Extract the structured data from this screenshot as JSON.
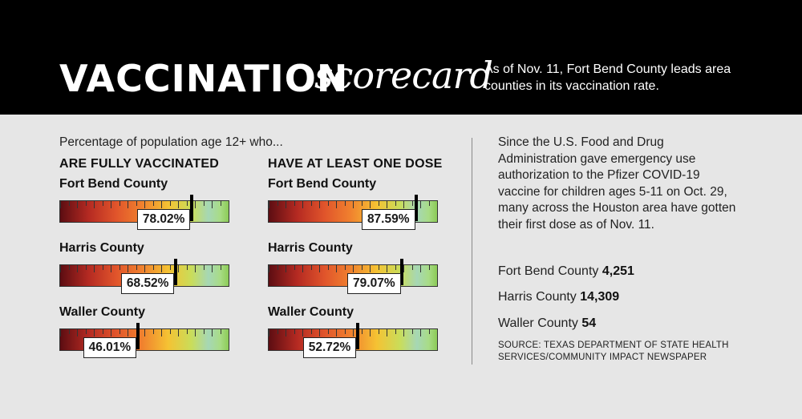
{
  "header": {
    "title_main": "VACCINATION",
    "title_script": "scorecard",
    "subtitle": "As of Nov. 11, Fort Bend County leads area counties in its vaccination rate."
  },
  "intro": "Percentage of population age 12+ who...",
  "chart_data": [
    {
      "type": "bar",
      "title": "ARE FULLY VACCINATED",
      "categories": [
        "Fort Bend County",
        "Harris County",
        "Waller County"
      ],
      "values": [
        78.02,
        68.52,
        46.01
      ],
      "labels": [
        "78.02%",
        "68.52%",
        "46.01%"
      ],
      "ylim": [
        0,
        100
      ]
    },
    {
      "type": "bar",
      "title": "HAVE AT LEAST ONE DOSE",
      "categories": [
        "Fort Bend County",
        "Harris County",
        "Waller County"
      ],
      "values": [
        87.59,
        79.07,
        52.72
      ],
      "labels": [
        "87.59%",
        "79.07%",
        "52.72%"
      ],
      "ylim": [
        0,
        100
      ]
    }
  ],
  "sidebar": {
    "text": "Since the U.S. Food and Drug Administration gave emergency use authorization to the Pfizer COVID-19 vaccine for children ages 5-11 on Oct. 29, many across the Houston area have gotten their first dose as of Nov. 11.",
    "doses": [
      {
        "county": "Fort Bend County",
        "value": "4,251"
      },
      {
        "county": "Harris County",
        "value": "14,309"
      },
      {
        "county": "Waller County",
        "value": "54"
      }
    ],
    "source": "SOURCE: TEXAS DEPARTMENT OF STATE HEALTH SERVICES/COMMUNITY IMPACT NEWSPAPER"
  }
}
